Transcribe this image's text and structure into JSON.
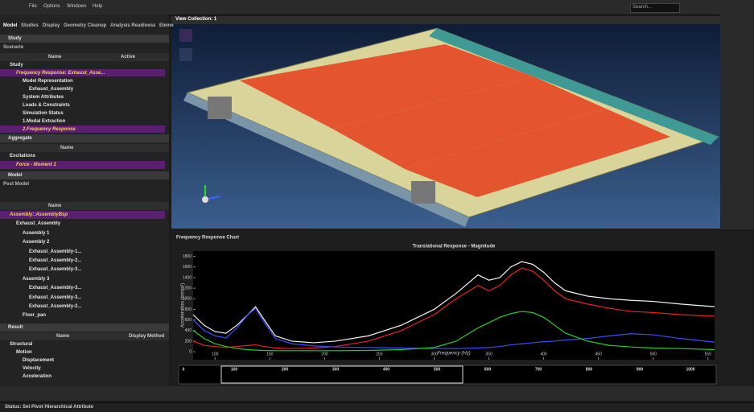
{
  "menu": [
    "File",
    "Options",
    "Windows",
    "Help"
  ],
  "search": "Search...",
  "tabs": [
    "Model",
    "Studies",
    "Display",
    "Geometry Cleanup",
    "Analysis Readiness",
    "Eleme"
  ],
  "study": {
    "title": "Study",
    "scenario": "Scenario",
    "columns": [
      "Name",
      "Active"
    ],
    "rows": [
      "Study",
      "Frequency Response: Exhaust_Asse...",
      "Model Representation",
      "Exhaust_Assembly",
      "System Attributes",
      "Loads & Constraints",
      "Simulation Status",
      "1.Modal Extraction",
      "2.Frequency Response"
    ]
  },
  "aggregate": {
    "title": "Aggregate",
    "columns": [
      "Name"
    ],
    "rows": [
      "Excitations",
      "Force - Moment 1"
    ]
  },
  "model": {
    "title": "Model",
    "post": "Post Model",
    "columns": [
      "Name"
    ],
    "rows": [
      "Assembly::AssemblyBsp",
      "Exhaust_Assembly",
      "Assembly 1",
      "Assembly 2",
      "Exhaust_Assembly-1...",
      "Exhaust_Assembly-2...",
      "Exhaust_Assembly-3...",
      "Assembly 3",
      "Exhaust_Assembly-3...",
      "Exhaust_Assembly-3...",
      "Exhaust_Assembly-2...",
      "Floor_pan"
    ]
  },
  "result": {
    "title": "Result",
    "columns": [
      "Name",
      "Display Method"
    ],
    "rows": [
      "Structural",
      "Motion",
      "Displacement",
      "Velocity",
      "Acceleration"
    ]
  },
  "viewport": {
    "title": "View Collection: 1"
  },
  "chart_panel": {
    "title": "Frequency Response Chart"
  },
  "chart_data": {
    "type": "line",
    "title": "Translational Response - Magnitude",
    "x_label": "Frequency (Hz)",
    "y_label": "Acceleration (mm/s²)",
    "x": [
      80,
      90,
      100,
      110,
      120,
      130,
      137,
      145,
      155,
      170,
      190,
      210,
      240,
      270,
      300,
      320,
      340,
      350,
      360,
      370,
      380,
      390,
      400,
      410,
      420,
      440,
      460,
      480,
      500,
      525,
      556
    ],
    "series": [
      {
        "name": "White",
        "color": "#f2f2f2",
        "values": [
          700,
          500,
          380,
          350,
          500,
          700,
          850,
          600,
          300,
          200,
          170,
          200,
          300,
          500,
          800,
          1100,
          1450,
          1350,
          1400,
          1600,
          1700,
          1650,
          1500,
          1300,
          1150,
          1050,
          1000,
          970,
          950,
          900,
          850
        ]
      },
      {
        "name": "Red",
        "color": "#e82020",
        "values": [
          200,
          120,
          100,
          80,
          100,
          120,
          130,
          100,
          70,
          60,
          70,
          100,
          200,
          400,
          700,
          1000,
          1250,
          1150,
          1250,
          1450,
          1580,
          1520,
          1350,
          1150,
          1000,
          900,
          820,
          760,
          740,
          700,
          670
        ]
      },
      {
        "name": "Blue",
        "color": "#3a4cff",
        "values": [
          600,
          400,
          300,
          260,
          450,
          700,
          820,
          550,
          250,
          150,
          110,
          90,
          80,
          70,
          60,
          60,
          70,
          80,
          100,
          130,
          150,
          170,
          190,
          200,
          220,
          250,
          300,
          340,
          320,
          250,
          180
        ]
      },
      {
        "name": "Green",
        "color": "#22d022",
        "values": [
          400,
          250,
          150,
          100,
          60,
          40,
          30,
          25,
          20,
          20,
          20,
          20,
          25,
          40,
          80,
          200,
          450,
          550,
          650,
          720,
          760,
          740,
          650,
          500,
          350,
          200,
          120,
          90,
          70,
          60,
          40
        ]
      }
    ],
    "xlim": [
      80,
      556
    ],
    "xticks": [
      100,
      150,
      200,
      250,
      300,
      350,
      400,
      450,
      500,
      550
    ],
    "ylim": [
      -150,
      1900
    ],
    "yticks": [
      0,
      200,
      400,
      600,
      800,
      1000,
      1200,
      1400,
      1600,
      1800
    ],
    "grid": false
  },
  "overview": {
    "xticks": [
      0,
      100,
      200,
      300,
      400,
      500,
      600,
      700,
      800,
      900,
      1000
    ]
  },
  "status": "Status:  Set Pivot Hierarchical Attribute"
}
